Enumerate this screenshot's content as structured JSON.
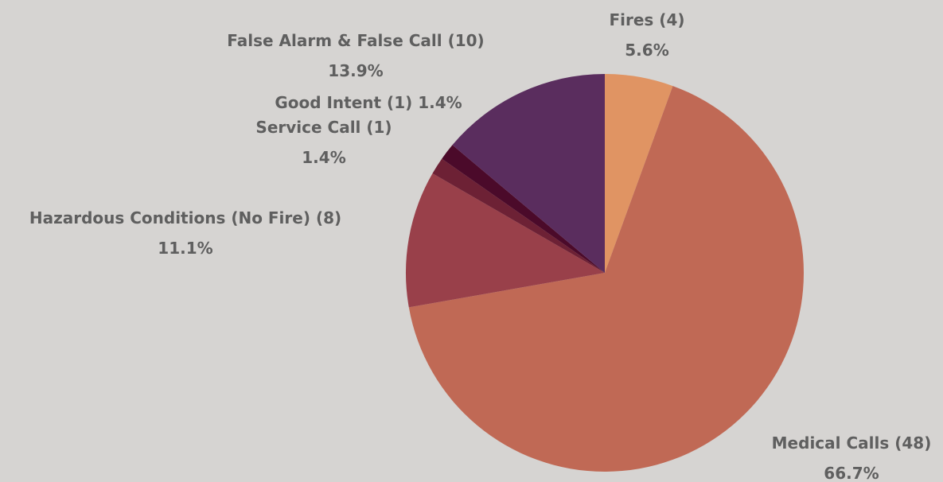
{
  "chart_data": {
    "type": "pie",
    "title": "",
    "background": "#d6d4d2",
    "label_color": "#5f5f5f",
    "slices": [
      {
        "category": "Fires",
        "count": 4,
        "percent": "5.6%",
        "color": "#e09463",
        "label_line1": "Fires (4)",
        "label_line2": "5.6%"
      },
      {
        "category": "Medical Calls",
        "count": 48,
        "percent": "66.7%",
        "color": "#c06955",
        "label_line1": "Medical Calls (48)",
        "label_line2": "66.7%"
      },
      {
        "category": "Hazardous Conditions (No Fire)",
        "count": 8,
        "percent": "11.1%",
        "color": "#99404a",
        "label_line1": "Hazardous Conditions (No Fire) (8)",
        "label_line2": "11.1%"
      },
      {
        "category": "Service Call",
        "count": 1,
        "percent": "1.4%",
        "color": "#6d2135",
        "label_line1": "Service Call (1)",
        "label_line2": "1.4%"
      },
      {
        "category": "Good Intent",
        "count": 1,
        "percent": "1.4%",
        "color": "#4b0a2a",
        "label_line1": "Good Intent (1) 1.4%",
        "label_line2": ""
      },
      {
        "category": "False Alarm & False Call",
        "count": 10,
        "percent": "13.9%",
        "color": "#5a2d5e",
        "label_line1": "False Alarm & False Call (10)",
        "label_line2": "13.9%"
      }
    ]
  }
}
